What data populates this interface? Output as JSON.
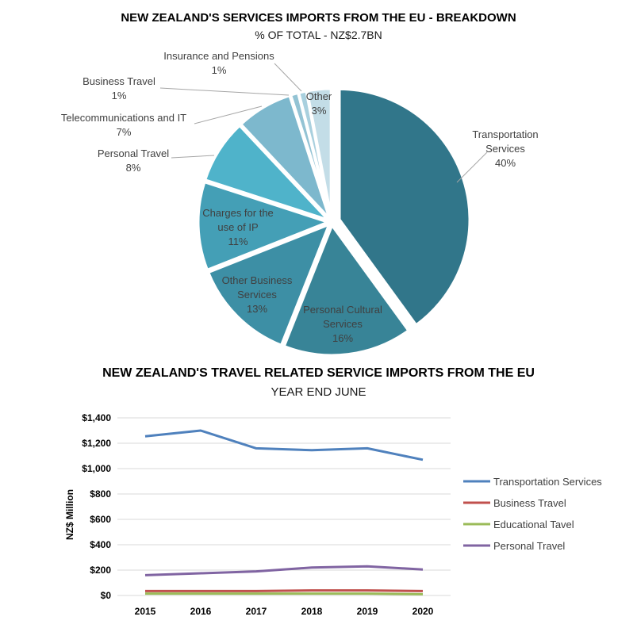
{
  "chart_data": [
    {
      "type": "pie",
      "title": "NEW ZEALAND'S SERVICES IMPORTS FROM THE EU - BREAKDOWN",
      "subtitle": "% OF TOTAL - NZ$2.7BN",
      "slices": [
        {
          "label": "Transportation Services",
          "line1": "Transportation",
          "line2": "Services",
          "pct_label": "40%",
          "value": 40,
          "color": "#31768a",
          "explode": true
        },
        {
          "label": "Personal Cultural Services",
          "line1": "Personal Cultural",
          "line2": "Services",
          "pct_label": "16%",
          "value": 16,
          "color": "#388497"
        },
        {
          "label": "Other Business Services",
          "line1": "Other Business",
          "line2": "Services",
          "pct_label": "13%",
          "value": 13,
          "color": "#3d8fa5"
        },
        {
          "label": "Charges for the use of IP",
          "line1": "Charges for the",
          "line2": "use of IP",
          "pct_label": "11%",
          "value": 11,
          "color": "#449fb6"
        },
        {
          "label": "Personal Travel",
          "line1": "Personal Travel",
          "line2": "",
          "pct_label": "8%",
          "value": 8,
          "color": "#4fb3ca"
        },
        {
          "label": "Telecommunications and IT",
          "line1": "Telecommunications and IT",
          "line2": "",
          "pct_label": "7%",
          "value": 7,
          "color": "#7db8cd"
        },
        {
          "label": "Business Travel",
          "line1": "Business Travel",
          "line2": "",
          "pct_label": "1%",
          "value": 1,
          "color": "#93c3d4"
        },
        {
          "label": "Insurance and Pensions",
          "line1": "Insurance and Pensions",
          "line2": "",
          "pct_label": "1%",
          "value": 1,
          "color": "#a9d0de"
        },
        {
          "label": "Other",
          "line1": "Other",
          "line2": "",
          "pct_label": "3%",
          "value": 3,
          "color": "#c3dde7"
        }
      ]
    },
    {
      "type": "line",
      "title": "NEW ZEALAND'S TRAVEL RELATED SERVICE IMPORTS FROM THE EU",
      "subtitle": "YEAR END JUNE",
      "ylabel": "NZ$ Million",
      "x": [
        "2015",
        "2016",
        "2017",
        "2018",
        "2019",
        "2020"
      ],
      "ylim": [
        0,
        1400
      ],
      "yticks": [
        0,
        200,
        400,
        600,
        800,
        1000,
        1200,
        1400
      ],
      "ytick_labels": [
        "$0",
        "$200",
        "$400",
        "$600",
        "$800",
        "$1,000",
        "$1,200",
        "$1,400"
      ],
      "grid": true,
      "legend": "right",
      "series": [
        {
          "name": "Transportation Services",
          "color": "#4f81bd",
          "values": [
            1255,
            1300,
            1160,
            1145,
            1160,
            1070
          ]
        },
        {
          "name": "Business Travel",
          "color": "#c0504d",
          "values": [
            35,
            35,
            35,
            40,
            40,
            35
          ]
        },
        {
          "name": "Educational Tavel",
          "color": "#9bbb59",
          "values": [
            15,
            15,
            15,
            15,
            15,
            10
          ]
        },
        {
          "name": "Personal Travel",
          "color": "#8064a2",
          "values": [
            160,
            175,
            190,
            220,
            230,
            205
          ]
        }
      ]
    }
  ]
}
